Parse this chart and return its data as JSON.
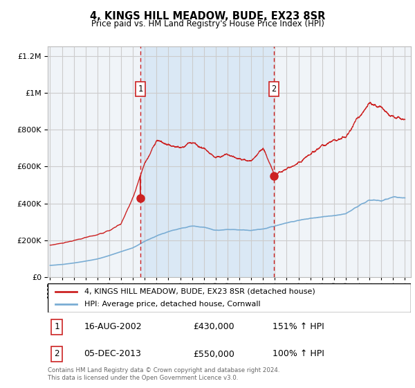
{
  "title": "4, KINGS HILL MEADOW, BUDE, EX23 8SR",
  "subtitle": "Price paid vs. HM Land Registry's House Price Index (HPI)",
  "legend_line1": "4, KINGS HILL MEADOW, BUDE, EX23 8SR (detached house)",
  "legend_line2": "HPI: Average price, detached house, Cornwall",
  "footer1": "Contains HM Land Registry data © Crown copyright and database right 2024.",
  "footer2": "This data is licensed under the Open Government Licence v3.0.",
  "sale1_date": "16-AUG-2002",
  "sale1_price": 430000,
  "sale2_date": "05-DEC-2013",
  "sale2_price": 550000,
  "sale1_x": 2002.62,
  "sale2_x": 2013.92,
  "ylim_min": 0,
  "ylim_max": 1250000,
  "xlim_min": 1994.8,
  "xlim_max": 2025.5,
  "plot_bg_color": "#f0f4f8",
  "shade_color": "#dae8f5",
  "fig_bg_color": "#ffffff",
  "red_line_color": "#cc2222",
  "blue_line_color": "#7aadd4",
  "grid_color": "#cccccc",
  "vline_color": "#cc2222",
  "table_row1": [
    "1",
    "16-AUG-2002",
    "£430,000",
    "151% ↑ HPI"
  ],
  "table_row2": [
    "2",
    "05-DEC-2013",
    "£550,000",
    "100% ↑ HPI"
  ],
  "hpi_years": [
    1995,
    1996,
    1997,
    1998,
    1999,
    2000,
    2001,
    2002,
    2003,
    2004,
    2005,
    2006,
    2007,
    2008,
    2009,
    2010,
    2011,
    2012,
    2013,
    2014,
    2015,
    2016,
    2017,
    2018,
    2019,
    2020,
    2021,
    2022,
    2023,
    2024,
    2025
  ],
  "hpi_vals": [
    65000,
    70000,
    78000,
    88000,
    100000,
    118000,
    140000,
    160000,
    195000,
    225000,
    248000,
    265000,
    278000,
    272000,
    255000,
    260000,
    258000,
    255000,
    262000,
    278000,
    295000,
    308000,
    320000,
    328000,
    335000,
    345000,
    385000,
    420000,
    415000,
    435000,
    430000
  ],
  "red_years": [
    1995,
    1996,
    1997,
    1998,
    1999,
    2000,
    2001,
    2002,
    2003,
    2004,
    2005,
    2006,
    2007,
    2008,
    2009,
    2010,
    2011,
    2012,
    2013,
    2014,
    2015,
    2016,
    2017,
    2018,
    2019,
    2020,
    2021,
    2022,
    2023,
    2024,
    2025
  ],
  "red_vals": [
    175000,
    185000,
    200000,
    215000,
    232000,
    255000,
    290000,
    430000,
    620000,
    740000,
    720000,
    700000,
    730000,
    700000,
    650000,
    665000,
    640000,
    630000,
    700000,
    550000,
    590000,
    620000,
    670000,
    710000,
    740000,
    760000,
    860000,
    940000,
    920000,
    870000,
    855000
  ]
}
